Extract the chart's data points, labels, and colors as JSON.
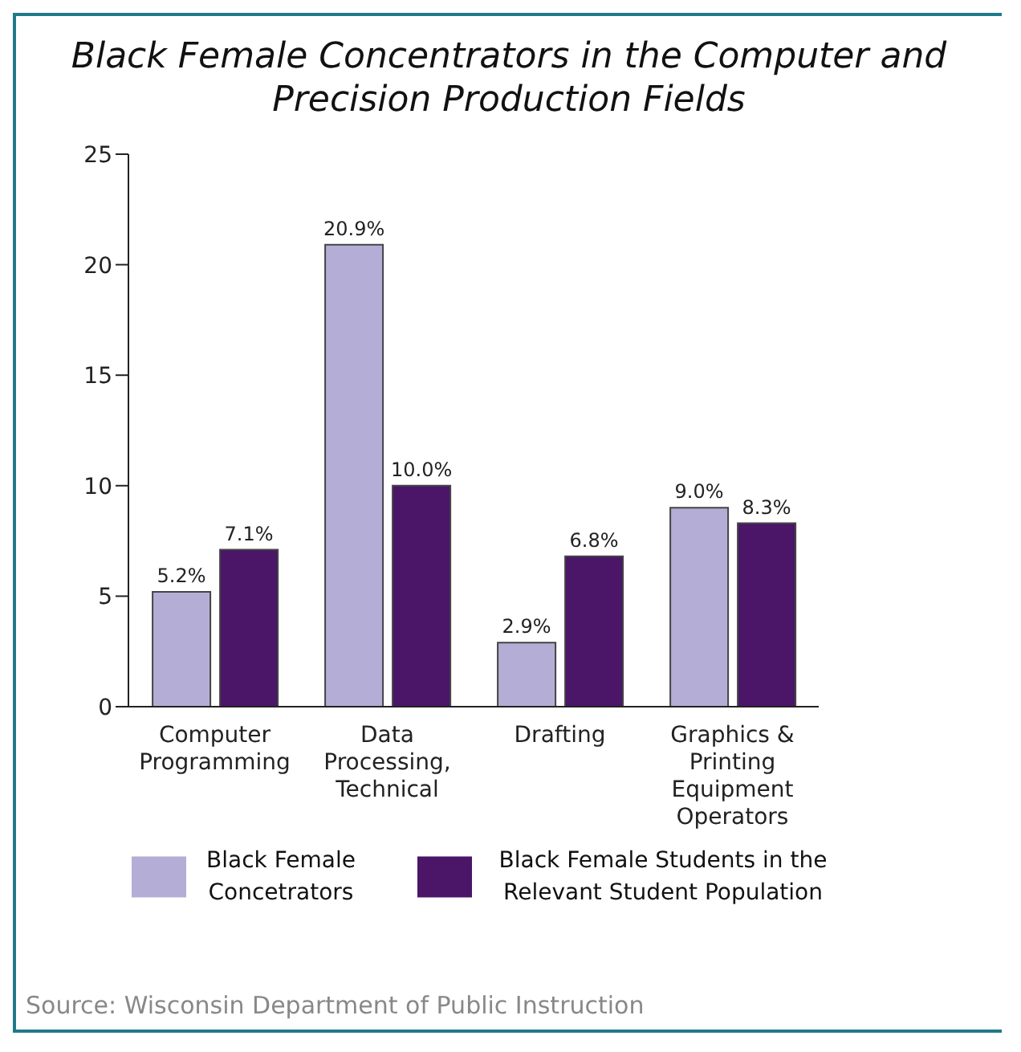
{
  "chart_data": {
    "type": "bar",
    "title": "Black Female Concentrators in the Computer and Precision Production Fields",
    "categories": [
      "Computer Programming",
      "Data Processing, Technical",
      "Drafting",
      "Graphics & Printing Equipment Operators"
    ],
    "series": [
      {
        "name": "Black Female Concetrators",
        "color": "#b4aed6",
        "values": [
          5.2,
          20.9,
          2.9,
          9.0
        ],
        "value_labels": [
          "5.2%",
          "20.9%",
          "2.9%",
          "9.0%"
        ]
      },
      {
        "name": "Black Female Students in the Relevant Student Population",
        "color": "#4b1568",
        "values": [
          7.1,
          10.0,
          6.8,
          8.3
        ],
        "value_labels": [
          "7.1%",
          "10.0%",
          "6.8%",
          "8.3%"
        ]
      }
    ],
    "ylim": [
      0,
      25
    ],
    "yticks": [
      0,
      5,
      10,
      15,
      20,
      25
    ],
    "grid": false,
    "legend": "bottom",
    "annotations": [
      "Source: Wisconsin Department of Public Instruction"
    ]
  }
}
